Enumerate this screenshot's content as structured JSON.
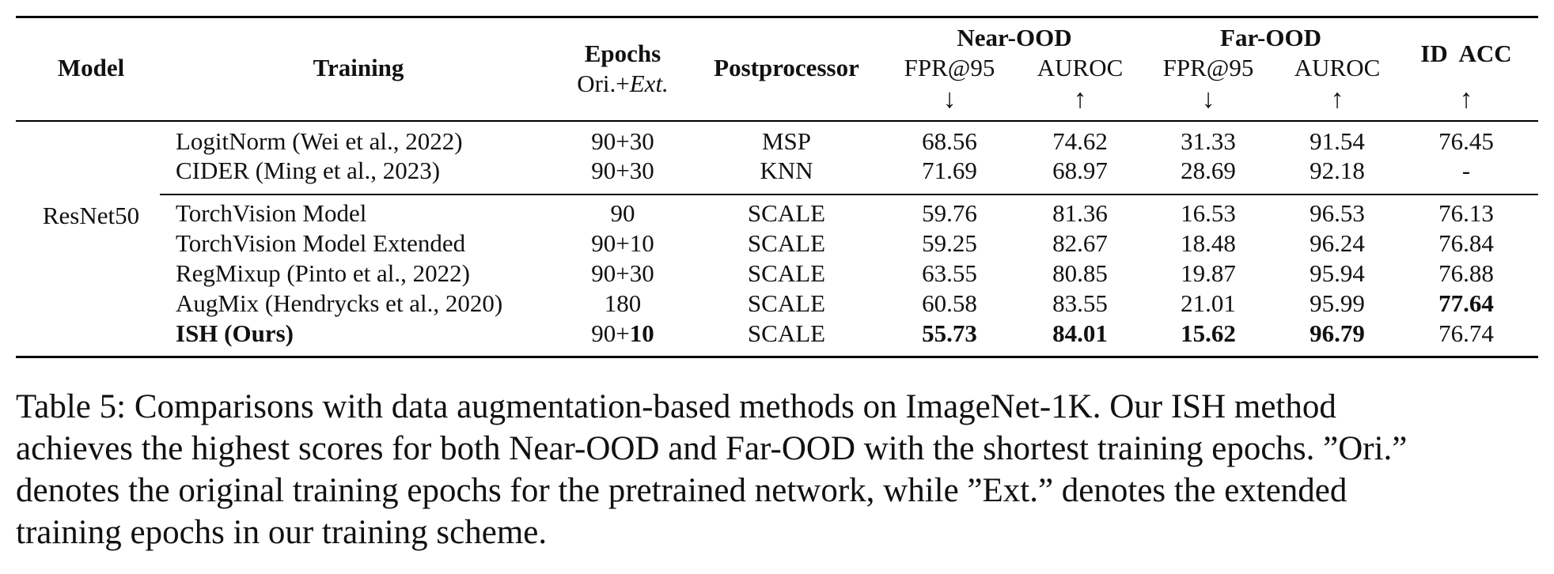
{
  "table": {
    "headers": {
      "model": "Model",
      "training": "Training",
      "epochs": "Epochs",
      "epochs_sub_prefix": "Ori.+",
      "epochs_sub_italic": "Ext.",
      "postprocessor": "Postprocessor",
      "near_ood": "Near-OOD",
      "far_ood": "Far-OOD",
      "id_acc": "ID  ACC",
      "fpr": "FPR@95",
      "auroc": "AUROC",
      "down_arrow": "↓",
      "up_arrow": "↑"
    },
    "model_name": "ResNet50",
    "rows": [
      {
        "training": "LogitNorm (Wei et al., 2022)",
        "epochs": "90+30",
        "post": "MSP",
        "near_fpr": "68.56",
        "near_auroc": "74.62",
        "far_fpr": "31.33",
        "far_auroc": "91.54",
        "id_acc": "76.45"
      },
      {
        "training": "CIDER (Ming et al., 2023)",
        "epochs": "90+30",
        "post": "KNN",
        "near_fpr": "71.69",
        "near_auroc": "68.97",
        "far_fpr": "28.69",
        "far_auroc": "92.18",
        "id_acc": "-"
      },
      {
        "training": "TorchVision Model",
        "epochs": "90",
        "post": "SCALE",
        "near_fpr": "59.76",
        "near_auroc": "81.36",
        "far_fpr": "16.53",
        "far_auroc": "96.53",
        "id_acc": "76.13"
      },
      {
        "training": "TorchVision Model Extended",
        "epochs": "90+10",
        "post": "SCALE",
        "near_fpr": "59.25",
        "near_auroc": "82.67",
        "far_fpr": "18.48",
        "far_auroc": "96.24",
        "id_acc": "76.84"
      },
      {
        "training": "RegMixup (Pinto et al., 2022)",
        "epochs": "90+30",
        "post": "SCALE",
        "near_fpr": "63.55",
        "near_auroc": "80.85",
        "far_fpr": "19.87",
        "far_auroc": "95.94",
        "id_acc": "76.88"
      },
      {
        "training": "AugMix (Hendrycks et al., 2020)",
        "epochs": "180",
        "post": "SCALE",
        "near_fpr": "60.58",
        "near_auroc": "83.55",
        "far_fpr": "21.01",
        "far_auroc": "95.99",
        "id_acc": "77.64"
      },
      {
        "training": "ISH (Ours)",
        "epochs_prefix": "90+",
        "epochs_bold": "10",
        "post": "SCALE",
        "near_fpr": "55.73",
        "near_auroc": "84.01",
        "far_fpr": "15.62",
        "far_auroc": "96.79",
        "id_acc": "76.74"
      }
    ]
  },
  "caption": {
    "line1": "Table 5: Comparisons with data augmentation-based methods on ImageNet-1K. Our ISH method",
    "line2": "achieves the highest scores for both Near-OOD and Far-OOD with the shortest training epochs. ”Ori.”",
    "line3": "denotes the original training epochs for the pretrained network, while ”Ext.” denotes the extended",
    "line4": "training epochs in our training scheme."
  }
}
